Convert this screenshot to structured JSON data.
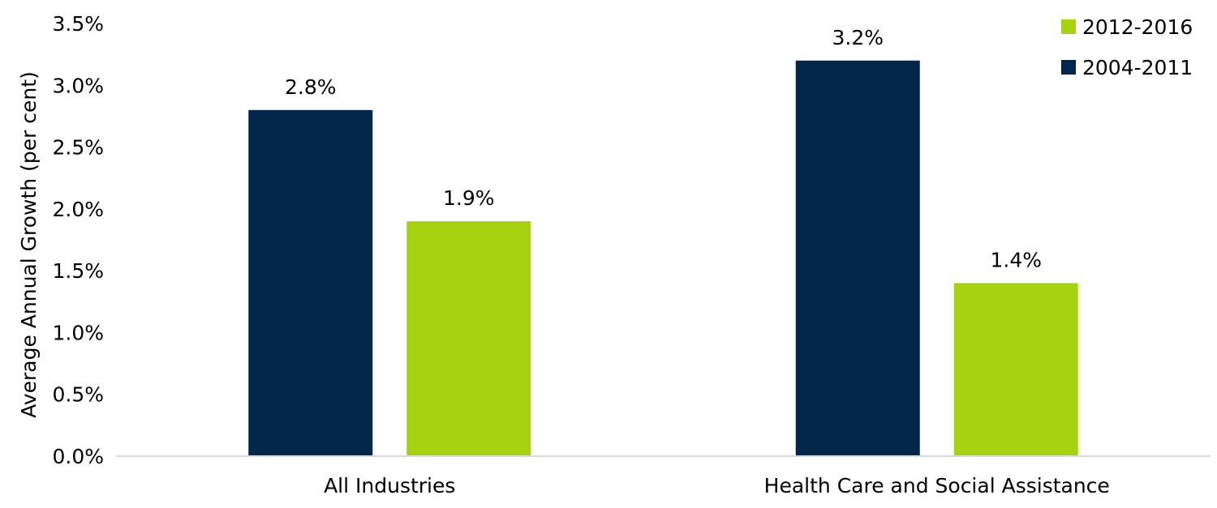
{
  "chart_data": {
    "type": "bar",
    "title": "",
    "xlabel": "",
    "ylabel": "Average Annual Growth (per cent)",
    "ylim": [
      0,
      3.5
    ],
    "yticks": [
      "0.0%",
      "0.5%",
      "1.0%",
      "1.5%",
      "2.0%",
      "2.5%",
      "3.0%",
      "3.5%"
    ],
    "categories": [
      "All Industries",
      "Health Care and Social Assistance"
    ],
    "series": [
      {
        "name": "2004-2011",
        "color": "#02274a",
        "values": [
          2.8,
          3.2
        ],
        "labels": [
          "2.8%",
          "3.2%"
        ]
      },
      {
        "name": "2012-2016",
        "color": "#a6d20f",
        "values": [
          1.9,
          1.4
        ],
        "labels": [
          "1.9%",
          "1.4%"
        ]
      }
    ],
    "legend": {
      "position": "top-right",
      "order": [
        1,
        0
      ]
    },
    "grid": false
  }
}
